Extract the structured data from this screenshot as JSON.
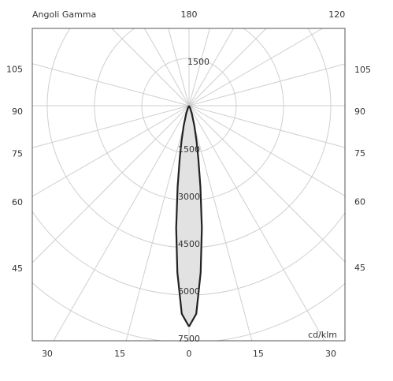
{
  "chart_data": {
    "type": "polar-photometric",
    "title": "Angoli Gamma",
    "unit_label": "cd/klm",
    "rlim": [
      0,
      7500
    ],
    "rticks": [
      1500,
      3000,
      4500,
      6000,
      7500
    ],
    "theta_ticks_right": [
      180,
      120,
      105,
      90,
      75,
      60,
      45,
      30,
      15,
      0
    ],
    "theta_ticks_left": [
      105,
      90,
      75,
      60,
      45,
      30,
      15
    ],
    "series": [
      {
        "color": "#222222",
        "fill": "#e2e2e2",
        "theta": [
          0,
          2,
          4,
          6,
          8,
          10,
          12,
          15,
          20,
          25,
          30
        ],
        "values": [
          7000,
          6600,
          5300,
          3900,
          2600,
          1700,
          1150,
          650,
          250,
          80,
          0
        ]
      }
    ]
  }
}
